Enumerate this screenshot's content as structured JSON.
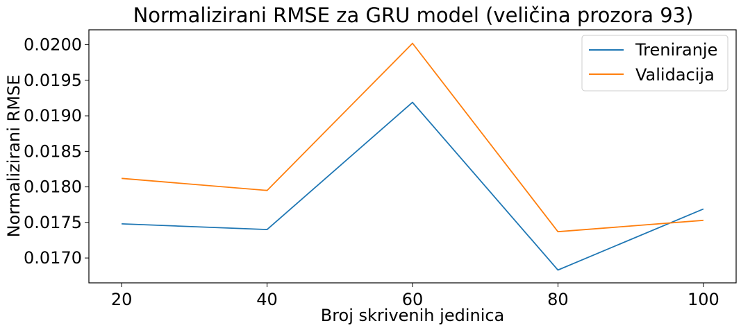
{
  "chart_data": {
    "type": "line",
    "title": "Normalizirani RMSE za GRU model (veličina prozora 93)",
    "xlabel": "Broj skrivenih jedinica",
    "ylabel": "Normalizirani RMSE",
    "x": [
      20,
      40,
      60,
      80,
      100
    ],
    "x_ticks": [
      "20",
      "40",
      "60",
      "80",
      "100"
    ],
    "y_ticks": [
      "0.0170",
      "0.0175",
      "0.0180",
      "0.0185",
      "0.0190",
      "0.0195",
      "0.0200"
    ],
    "xlim": [
      15.5,
      104.5
    ],
    "ylim": [
      0.01665,
      0.02021
    ],
    "grid": false,
    "legend_position": "top-right",
    "series": [
      {
        "name": "Treniranje",
        "color": "#1f77b4",
        "values": [
          0.01748,
          0.0174,
          0.01919,
          0.01683,
          0.01769
        ]
      },
      {
        "name": "Validacija",
        "color": "#ff7f0e",
        "values": [
          0.01812,
          0.01795,
          0.02002,
          0.01737,
          0.01753
        ]
      }
    ]
  }
}
